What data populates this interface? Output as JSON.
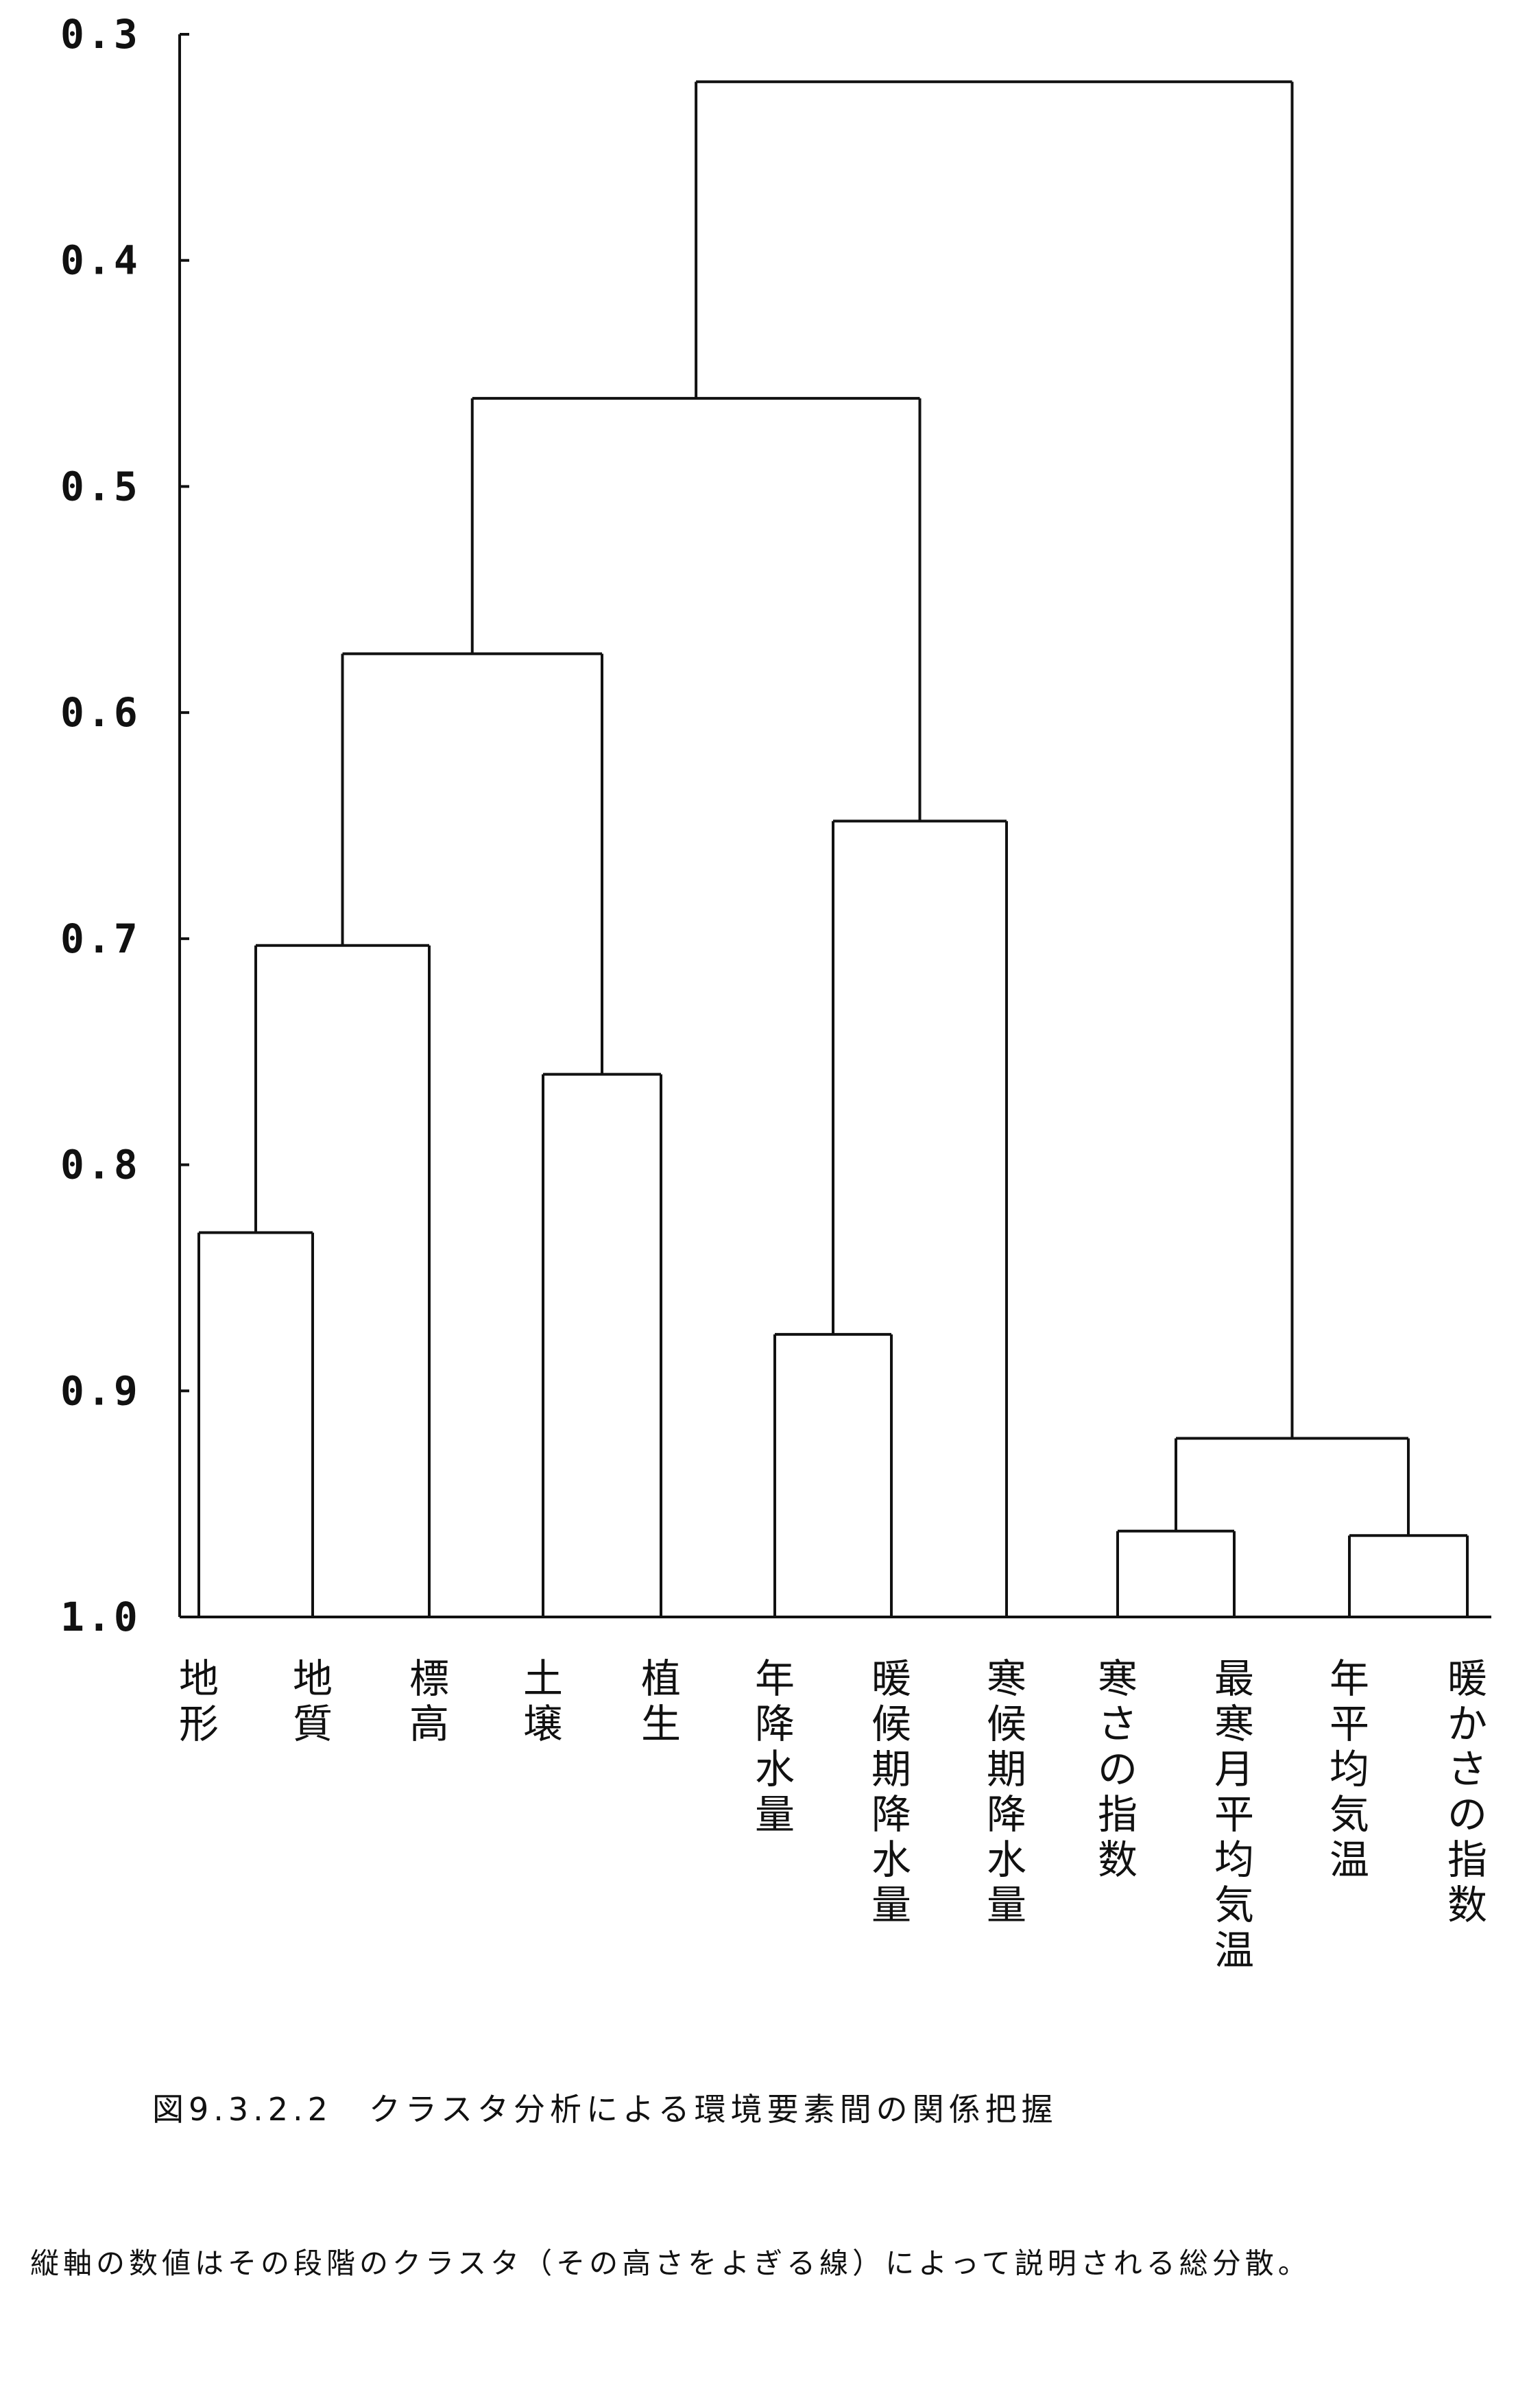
{
  "chart_data": {
    "type": "dendrogram",
    "title": "",
    "ylabel": "",
    "xlabel": "",
    "ylim": [
      0.3,
      1.0
    ],
    "y_inverted": true,
    "y_ticks": [
      "0.3",
      "0.4",
      "0.5",
      "0.6",
      "0.7",
      "0.8",
      "0.9",
      "1.0"
    ],
    "leaves": [
      "地形",
      "地質",
      "標高",
      "土壌",
      "植生",
      "年降水量",
      "暖候期降水量",
      "寒候期降水量",
      "寒さの指数",
      "最寒月平均気温",
      "年平均気温",
      "暖かさの指数"
    ],
    "merges": [
      {
        "members": [
          "地形",
          "地質"
        ],
        "height": 0.83
      },
      {
        "members": [
          "地形",
          "地質",
          "標高"
        ],
        "height": 0.703
      },
      {
        "members": [
          "土壌",
          "植生"
        ],
        "height": 0.76
      },
      {
        "members": [
          "地形",
          "地質",
          "標高",
          "土壌",
          "植生"
        ],
        "height": 0.574
      },
      {
        "members": [
          "年降水量",
          "暖候期降水量"
        ],
        "height": 0.875
      },
      {
        "members": [
          "年降水量",
          "暖候期降水量",
          "寒候期降水量"
        ],
        "height": 0.648
      },
      {
        "members": [
          "地形",
          "地質",
          "標高",
          "土壌",
          "植生",
          "年降水量",
          "暖候期降水量",
          "寒候期降水量"
        ],
        "height": 0.461
      },
      {
        "members": [
          "寒さの指数",
          "最寒月平均気温"
        ],
        "height": 0.962
      },
      {
        "members": [
          "年平均気温",
          "暖かさの指数"
        ],
        "height": 0.964
      },
      {
        "members": [
          "寒さの指数",
          "最寒月平均気温",
          "年平均気温",
          "暖かさの指数"
        ],
        "height": 0.921
      },
      {
        "members": [
          "地形",
          "地質",
          "標高",
          "土壌",
          "植生",
          "年降水量",
          "暖候期降水量",
          "寒候期降水量",
          "寒さの指数",
          "最寒月平均気温",
          "年平均気温",
          "暖かさの指数"
        ],
        "height": 0.321
      }
    ]
  },
  "caption": "図9.3.2.2　クラスタ分析による環境要素間の関係把握",
  "note": "縦軸の数値はその段階のクラスタ（その高さをよぎる線）によって説明される総分散。"
}
